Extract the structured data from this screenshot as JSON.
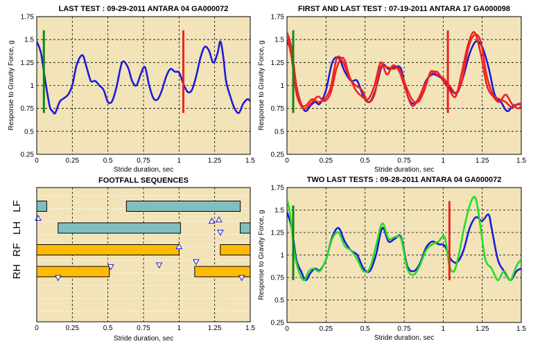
{
  "colors": {
    "plot_bg": "#f2e3b9",
    "grid": "#000000",
    "blue": "#1a1adc",
    "red": "#ee2222",
    "green_line": "#22dd22",
    "marker_green": "#118811",
    "marker_red": "#dd1111",
    "bar_teal": "#7fbfbf",
    "bar_orange": "#ffbb00",
    "tri": "#1a1adc"
  },
  "chart_data": [
    {
      "type": "line",
      "title": "LAST TEST : 09-29-2011 ANTARA 04 GA000072",
      "xlabel": "Stride duration, sec",
      "ylabel": "Response to Gravity Force, g",
      "xlim": [
        0,
        1.5
      ],
      "ylim": [
        0.25,
        1.75
      ],
      "xticks": [
        "0",
        "0.25",
        "0.5",
        "0.75",
        "1",
        "1.25",
        "1.5"
      ],
      "yticks": [
        "0.25",
        "0.5",
        "0.75",
        "1",
        "1.25",
        "1.5",
        "1.75"
      ],
      "grid": true,
      "markers": [
        {
          "x": 0.05,
          "y_from": 0.7,
          "y_to": 1.6,
          "color": "green"
        },
        {
          "x": 1.03,
          "y_from": 0.7,
          "y_to": 1.6,
          "color": "red"
        }
      ],
      "series": [
        {
          "color": "blue",
          "x": [
            0,
            0.03,
            0.06,
            0.09,
            0.11,
            0.13,
            0.16,
            0.19,
            0.22,
            0.25,
            0.28,
            0.32,
            0.35,
            0.38,
            0.41,
            0.44,
            0.47,
            0.5,
            0.53,
            0.56,
            0.6,
            0.64,
            0.67,
            0.7,
            0.73,
            0.76,
            0.79,
            0.82,
            0.85,
            0.88,
            0.91,
            0.94,
            0.97,
            1.0,
            1.03,
            1.06,
            1.09,
            1.12,
            1.15,
            1.18,
            1.21,
            1.24,
            1.27,
            1.29,
            1.31,
            1.33,
            1.36,
            1.39,
            1.42,
            1.45,
            1.48,
            1.5
          ],
          "y": [
            1.48,
            1.35,
            1.05,
            0.78,
            0.72,
            0.7,
            0.82,
            0.86,
            0.9,
            1.0,
            1.22,
            1.33,
            1.2,
            1.05,
            1.05,
            1.0,
            0.95,
            0.82,
            0.83,
            0.98,
            1.25,
            1.2,
            1.05,
            1.0,
            1.12,
            1.2,
            1.0,
            0.86,
            0.85,
            0.95,
            1.1,
            1.18,
            1.15,
            1.14,
            1.02,
            0.93,
            0.95,
            1.1,
            1.3,
            1.42,
            1.38,
            1.25,
            1.35,
            1.48,
            1.32,
            1.05,
            0.88,
            0.75,
            0.7,
            0.8,
            0.85,
            0.83
          ]
        }
      ]
    },
    {
      "type": "line",
      "title": "FIRST AND LAST TEST : 07-19-2011 ANTARA 17 GA000098",
      "xlabel": "Stride duration, sec",
      "ylabel": "Response to Gravity Force, g",
      "xlim": [
        0,
        1.5
      ],
      "ylim": [
        0.25,
        1.75
      ],
      "xticks": [
        "0",
        "0.25",
        "0.5",
        "0.75",
        "1",
        "1.25",
        "1.5"
      ],
      "yticks": [
        "0.25",
        "0.5",
        "0.75",
        "1",
        "1.25",
        "1.5",
        "1.75"
      ],
      "grid": true,
      "markers": [
        {
          "x": 0.04,
          "y_from": 0.7,
          "y_to": 1.6,
          "color": "green"
        },
        {
          "x": 1.03,
          "y_from": 0.7,
          "y_to": 1.6,
          "color": "red"
        }
      ],
      "series": [
        {
          "color": "blue",
          "x": [
            0,
            0.03,
            0.06,
            0.09,
            0.12,
            0.15,
            0.18,
            0.21,
            0.25,
            0.29,
            0.33,
            0.37,
            0.41,
            0.45,
            0.49,
            0.53,
            0.57,
            0.61,
            0.65,
            0.69,
            0.73,
            0.77,
            0.81,
            0.85,
            0.89,
            0.93,
            0.97,
            1.01,
            1.05,
            1.09,
            1.13,
            1.17,
            1.21,
            1.25,
            1.29,
            1.33,
            1.37,
            1.41,
            1.45,
            1.5
          ],
          "y": [
            1.48,
            1.35,
            1.0,
            0.8,
            0.72,
            0.78,
            0.82,
            0.8,
            0.95,
            1.25,
            1.3,
            1.15,
            1.05,
            1.05,
            0.88,
            0.82,
            0.97,
            1.22,
            1.18,
            1.2,
            1.18,
            0.9,
            0.8,
            0.88,
            1.05,
            1.12,
            1.1,
            1.05,
            0.95,
            0.92,
            1.1,
            1.35,
            1.48,
            1.42,
            1.2,
            0.9,
            0.82,
            0.72,
            0.78,
            0.8
          ]
        },
        {
          "color": "red",
          "x": [
            0,
            0.03,
            0.06,
            0.09,
            0.12,
            0.16,
            0.2,
            0.24,
            0.28,
            0.32,
            0.36,
            0.4,
            0.44,
            0.48,
            0.52,
            0.56,
            0.6,
            0.64,
            0.68,
            0.72,
            0.76,
            0.8,
            0.84,
            0.88,
            0.92,
            0.96,
            1.0,
            1.04,
            1.08,
            1.12,
            1.16,
            1.2,
            1.24,
            1.28,
            1.32,
            1.36,
            1.4,
            1.44,
            1.48,
            1.5
          ],
          "y": [
            1.58,
            1.4,
            1.0,
            0.8,
            0.78,
            0.85,
            0.82,
            0.85,
            0.98,
            1.3,
            1.25,
            1.08,
            1.0,
            0.95,
            0.82,
            0.9,
            1.2,
            1.2,
            1.18,
            1.18,
            1.0,
            0.85,
            0.82,
            0.95,
            1.15,
            1.12,
            1.08,
            1.0,
            0.92,
            1.05,
            1.4,
            1.55,
            1.48,
            1.1,
            0.9,
            0.85,
            0.82,
            0.76,
            0.8,
            0.8
          ]
        },
        {
          "color": "red",
          "x": [
            0,
            0.03,
            0.06,
            0.09,
            0.12,
            0.16,
            0.2,
            0.24,
            0.28,
            0.32,
            0.36,
            0.4,
            0.44,
            0.48,
            0.52,
            0.56,
            0.6,
            0.64,
            0.68,
            0.72,
            0.76,
            0.8,
            0.84,
            0.88,
            0.92,
            0.96,
            1.0,
            1.04,
            1.08,
            1.12,
            1.16,
            1.2,
            1.24,
            1.28,
            1.32,
            1.36,
            1.4,
            1.44,
            1.48,
            1.5
          ],
          "y": [
            1.55,
            1.3,
            0.92,
            0.78,
            0.75,
            0.82,
            0.88,
            0.83,
            0.92,
            1.2,
            1.3,
            1.1,
            0.95,
            0.88,
            0.85,
            1.0,
            1.25,
            1.12,
            1.22,
            1.15,
            0.95,
            0.78,
            0.85,
            1.0,
            1.12,
            1.15,
            1.05,
            0.95,
            0.88,
            1.15,
            1.45,
            1.58,
            1.35,
            1.0,
            0.88,
            0.82,
            0.9,
            0.8,
            0.75,
            0.78
          ]
        }
      ]
    },
    {
      "type": "gantt",
      "title": "FOOTFALL SEQUENCES",
      "xlabel": "Stride duration, sec",
      "xlim": [
        0,
        1.5
      ],
      "xticks": [
        "0",
        "0.25",
        "0.5",
        "0.75",
        "1",
        "1.25",
        "1.5"
      ],
      "rows": [
        "LF",
        "LH",
        "RF",
        "RH"
      ],
      "bars": [
        {
          "row": "LF",
          "start": 0.0,
          "end": 0.07,
          "color": "teal"
        },
        {
          "row": "LF",
          "start": 0.63,
          "end": 1.43,
          "color": "teal"
        },
        {
          "row": "LH",
          "start": 0.15,
          "end": 1.01,
          "color": "teal"
        },
        {
          "row": "LH",
          "start": 1.43,
          "end": 1.5,
          "color": "teal"
        },
        {
          "row": "RF",
          "start": 0.0,
          "end": 1.0,
          "color": "orange"
        },
        {
          "row": "RF",
          "start": 1.29,
          "end": 1.5,
          "color": "orange"
        },
        {
          "row": "RH",
          "start": 0.0,
          "end": 0.51,
          "color": "orange"
        },
        {
          "row": "RH",
          "start": 1.11,
          "end": 1.5,
          "color": "orange"
        }
      ],
      "triangles": [
        {
          "x": 0.01,
          "lane": 0.55,
          "dir": "up"
        },
        {
          "x": 1.23,
          "lane": 0.68,
          "dir": "up"
        },
        {
          "x": 1.28,
          "lane": 0.62,
          "dir": "up"
        },
        {
          "x": 1.29,
          "lane": 1.2,
          "dir": "down"
        },
        {
          "x": 1.0,
          "lane": 1.85,
          "dir": "up"
        },
        {
          "x": 1.12,
          "lane": 2.55,
          "dir": "down"
        },
        {
          "x": 0.86,
          "lane": 2.7,
          "dir": "down"
        },
        {
          "x": 0.52,
          "lane": 2.78,
          "dir": "down"
        },
        {
          "x": 0.15,
          "lane": 3.28,
          "dir": "down"
        },
        {
          "x": 1.44,
          "lane": 3.28,
          "dir": "down"
        }
      ]
    },
    {
      "type": "line",
      "title": "TWO LAST TESTS : 09-28-2011 ANTARA 04 GA000072",
      "xlabel": "Stride duration, sec",
      "ylabel": "Response to Gravity Force, g",
      "xlim": [
        0,
        1.5
      ],
      "ylim": [
        0.25,
        1.75
      ],
      "xticks": [
        "0",
        "0.25",
        "0.5",
        "0.75",
        "1",
        "1.25",
        "1.5"
      ],
      "yticks": [
        "0.25",
        "0.5",
        "0.75",
        "1",
        "1.25",
        "1.5",
        "1.75"
      ],
      "grid": true,
      "markers": [
        {
          "x": 0.04,
          "y_from": 0.72,
          "y_to": 1.55,
          "color": "green"
        },
        {
          "x": 1.04,
          "y_from": 0.72,
          "y_to": 1.6,
          "color": "red"
        }
      ],
      "series": [
        {
          "color": "blue",
          "x": [
            0,
            0.03,
            0.06,
            0.09,
            0.12,
            0.15,
            0.18,
            0.21,
            0.25,
            0.29,
            0.33,
            0.37,
            0.41,
            0.45,
            0.49,
            0.53,
            0.57,
            0.61,
            0.65,
            0.69,
            0.73,
            0.77,
            0.81,
            0.85,
            0.89,
            0.93,
            0.97,
            1.01,
            1.05,
            1.09,
            1.13,
            1.17,
            1.21,
            1.25,
            1.29,
            1.31,
            1.35,
            1.39,
            1.43,
            1.47,
            1.5
          ],
          "y": [
            1.48,
            1.3,
            0.95,
            0.82,
            0.72,
            0.8,
            0.85,
            0.83,
            0.95,
            1.2,
            1.3,
            1.15,
            1.05,
            1.0,
            0.85,
            0.82,
            1.0,
            1.3,
            1.15,
            1.18,
            1.2,
            0.88,
            0.82,
            0.9,
            1.08,
            1.15,
            1.12,
            1.1,
            0.95,
            0.92,
            1.05,
            1.3,
            1.42,
            1.38,
            1.45,
            1.3,
            0.95,
            0.82,
            0.72,
            0.82,
            0.85
          ]
        },
        {
          "color": "green_line",
          "x": [
            0,
            0.02,
            0.05,
            0.08,
            0.11,
            0.14,
            0.17,
            0.21,
            0.25,
            0.29,
            0.33,
            0.37,
            0.41,
            0.45,
            0.49,
            0.53,
            0.57,
            0.61,
            0.65,
            0.69,
            0.73,
            0.77,
            0.81,
            0.85,
            0.89,
            0.93,
            0.97,
            1.01,
            1.04,
            1.07,
            1.1,
            1.14,
            1.18,
            1.21,
            1.24,
            1.27,
            1.31,
            1.35,
            1.39,
            1.43,
            1.47,
            1.5
          ],
          "y": [
            1.62,
            1.45,
            1.0,
            0.8,
            0.72,
            0.82,
            0.85,
            0.82,
            0.95,
            1.18,
            1.25,
            1.1,
            1.05,
            0.95,
            0.82,
            0.85,
            1.1,
            1.35,
            1.18,
            1.2,
            1.18,
            0.85,
            0.78,
            0.88,
            1.05,
            1.12,
            1.15,
            1.2,
            0.88,
            0.82,
            1.0,
            1.35,
            1.6,
            1.62,
            1.3,
            0.95,
            0.85,
            0.72,
            0.82,
            0.72,
            0.88,
            0.95
          ]
        }
      ]
    }
  ]
}
